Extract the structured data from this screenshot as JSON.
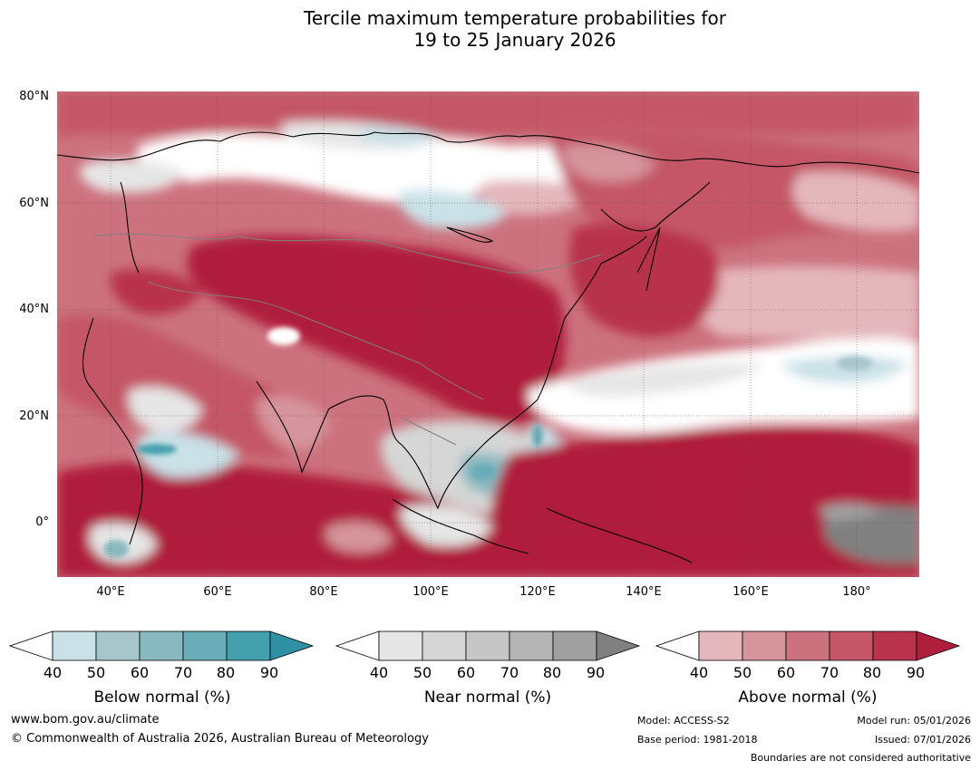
{
  "title": {
    "line1": "Tercile maximum temperature probabilities for",
    "line2": "19 to 25 January 2026"
  },
  "axes": {
    "lat_labels": [
      "80°N",
      "60°N",
      "40°N",
      "20°N",
      "0°"
    ],
    "lon_labels": [
      "40°E",
      "60°E",
      "80°E",
      "100°E",
      "120°E",
      "140°E",
      "160°E",
      "180°"
    ],
    "lon_range": [
      30,
      191
    ],
    "lat_range": [
      -10,
      81
    ]
  },
  "legend": {
    "below": {
      "label": "Below normal (%)",
      "ticks": [
        "40",
        "50",
        "60",
        "70",
        "80",
        "90"
      ],
      "colors": [
        "#ffffff",
        "#c9e1e7",
        "#a7c6cc",
        "#89b9c0",
        "#6aacb7",
        "#45a0ae",
        "#2e90a2"
      ]
    },
    "near": {
      "label": "Near normal (%)",
      "ticks": [
        "40",
        "50",
        "60",
        "70",
        "80",
        "90"
      ],
      "colors": [
        "#ffffff",
        "#e6e6e6",
        "#d6d6d6",
        "#c6c6c6",
        "#b5b5b5",
        "#a0a0a0",
        "#808080"
      ]
    },
    "above": {
      "label": "Above normal (%)",
      "ticks": [
        "40",
        "50",
        "60",
        "70",
        "80",
        "90"
      ],
      "colors": [
        "#ffffff",
        "#e4b7bc",
        "#d6949c",
        "#cc727e",
        "#c45667",
        "#b8334b",
        "#b01e3d"
      ]
    }
  },
  "footer": {
    "website": "www.bom.gov.au/climate",
    "copyright": "© Commonwealth of Australia 2026, Australian Bureau of Meteorology",
    "model": "Model: ACCESS-S2",
    "base_period": "Base period: 1981-2018",
    "model_run": "Model run: 05/01/2026",
    "issued": "Issued: 07/01/2026",
    "disclaimer": "Boundaries are not considered authoritative"
  }
}
